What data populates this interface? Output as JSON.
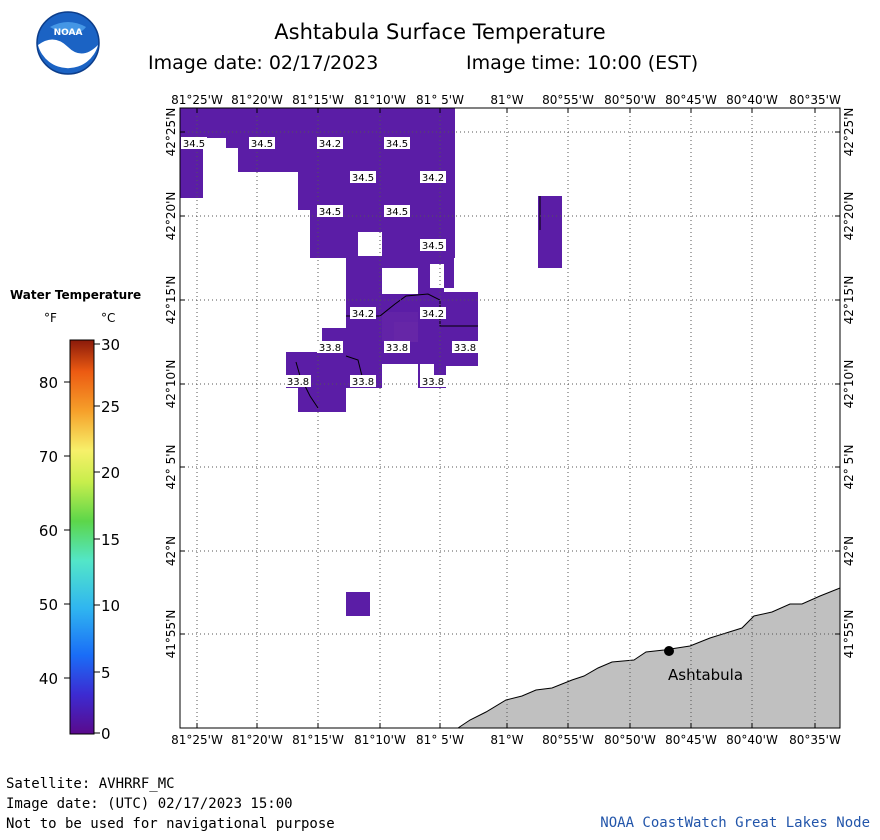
{
  "header": {
    "logo_text": "NOAA",
    "title": "Ashtabula Surface Temperature",
    "image_date": "Image date: 02/17/2023",
    "image_time": "Image time: 10:00 (EST)"
  },
  "legend": {
    "title": "Water Temperature",
    "unit_f": "°F",
    "unit_c": "°C",
    "f_ticks": [
      "80",
      "70",
      "60",
      "50",
      "40"
    ],
    "c_ticks": [
      "30",
      "25",
      "20",
      "15",
      "10",
      "5",
      "0"
    ]
  },
  "map": {
    "lon_labels": [
      "81°25'W",
      "81°20'W",
      "81°15'W",
      "81°10'W",
      "81° 5'W",
      "81°W",
      "80°55'W",
      "80°50'W",
      "80°45'W",
      "80°40'W",
      "80°35'W"
    ],
    "lat_labels": [
      "42°25'N",
      "42°20'N",
      "42°15'N",
      "42°10'N",
      "42° 5'N",
      "42°N",
      "41°55'N"
    ],
    "city": "Ashtabula",
    "water_color": "#5b1da6",
    "land_color": "#c0c0c0",
    "temperature_labels": [
      {
        "text": "34.5"
      },
      {
        "text": "34.5"
      },
      {
        "text": "34.2"
      },
      {
        "text": "34.5"
      },
      {
        "text": "34.5"
      },
      {
        "text": "34.2"
      },
      {
        "text": "34.5"
      },
      {
        "text": "34.5"
      },
      {
        "text": "34.5"
      },
      {
        "text": "34.2"
      },
      {
        "text": "34.2"
      },
      {
        "text": "33.8"
      },
      {
        "text": "33.8"
      },
      {
        "text": "33.8"
      },
      {
        "text": "33.8"
      },
      {
        "text": "33.8"
      },
      {
        "text": "33.8"
      }
    ]
  },
  "footer": {
    "satellite": "Satellite: AVHRRF_MC",
    "utc_date": "Image date: (UTC) 02/17/2023  15:00",
    "warning": "Not to be used for navigational purpose",
    "credit": "NOAA CoastWatch Great Lakes Node"
  }
}
